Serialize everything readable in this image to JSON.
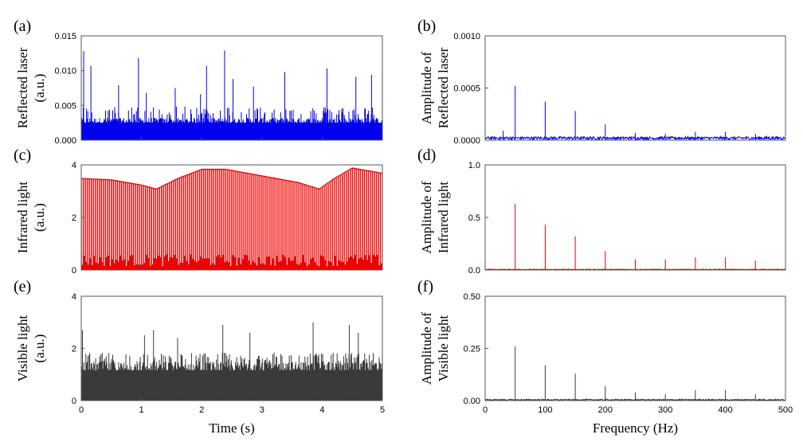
{
  "chart_data": [
    {
      "panel": "(a)",
      "type": "line",
      "ylabel": [
        "Reflected laser",
        "(a.u.)"
      ],
      "xlabel": "",
      "color": "#0000ee",
      "xlim": [
        0,
        5
      ],
      "ylim": [
        0,
        0.015
      ],
      "xticks": [
        0,
        1,
        2,
        3,
        4,
        5
      ],
      "xtick_labels": [],
      "yticks": [
        0,
        0.005,
        0.01,
        0.015
      ],
      "ytick_labels": [
        "0.000",
        "0.005",
        "0.010",
        "0.015"
      ],
      "signal": {
        "kind": "time",
        "base": 0.0028,
        "peaks_avg": 0.0042,
        "peak_prob": 0.22,
        "spikes": [
          [
            0.04,
            0.0128
          ],
          [
            0.16,
            0.0107
          ],
          [
            0.62,
            0.0079
          ],
          [
            0.95,
            0.0118
          ],
          [
            1.08,
            0.0068
          ],
          [
            1.56,
            0.0075
          ],
          [
            1.98,
            0.0066
          ],
          [
            2.08,
            0.0107
          ],
          [
            2.38,
            0.0129
          ],
          [
            2.52,
            0.0088
          ],
          [
            2.86,
            0.0077
          ],
          [
            3.38,
            0.0098
          ],
          [
            4.08,
            0.0103
          ],
          [
            4.56,
            0.0091
          ],
          [
            4.82,
            0.0094
          ]
        ]
      }
    },
    {
      "panel": "(b)",
      "type": "line",
      "ylabel": [
        "Amplitude of",
        "Reflected laser"
      ],
      "xlabel": "",
      "color": "#0000ee",
      "xlim": [
        0,
        500
      ],
      "ylim": [
        0,
        0.001
      ],
      "xticks": [
        0,
        100,
        200,
        300,
        400,
        500
      ],
      "xtick_labels": [],
      "yticks": [
        0,
        0.0005,
        0.001
      ],
      "ytick_labels": [
        "0.0000",
        "0.0005",
        "0.0010"
      ],
      "signal": {
        "kind": "spectrum",
        "noise": 2e-05,
        "peaks": [
          [
            0,
            0.00075
          ],
          [
            30,
            9e-05
          ],
          [
            50,
            0.00052
          ],
          [
            100,
            0.00037
          ],
          [
            150,
            0.00028
          ],
          [
            200,
            0.00015
          ],
          [
            250,
            7e-05
          ],
          [
            300,
            6e-05
          ],
          [
            350,
            8e-05
          ],
          [
            400,
            8e-05
          ],
          [
            450,
            6e-05
          ]
        ]
      }
    },
    {
      "panel": "(c)",
      "type": "line",
      "ylabel": [
        "Infrared light",
        "(a.u.)"
      ],
      "xlabel": "",
      "color": "#ee0000",
      "xlim": [
        0,
        5
      ],
      "ylim": [
        0,
        4
      ],
      "xticks": [
        0,
        1,
        2,
        3,
        4,
        5
      ],
      "xtick_labels": [],
      "yticks": [
        0,
        2,
        4
      ],
      "ytick_labels": [
        "0",
        "2",
        "4"
      ],
      "signal": {
        "kind": "envelope",
        "base": 0.35,
        "envelope": [
          [
            0,
            3.5
          ],
          [
            0.5,
            3.45
          ],
          [
            1.0,
            3.25
          ],
          [
            1.25,
            3.1
          ],
          [
            1.6,
            3.5
          ],
          [
            2.0,
            3.85
          ],
          [
            2.4,
            3.85
          ],
          [
            3.0,
            3.6
          ],
          [
            3.6,
            3.35
          ],
          [
            3.95,
            3.1
          ],
          [
            4.2,
            3.5
          ],
          [
            4.5,
            3.9
          ],
          [
            5.0,
            3.7
          ]
        ]
      }
    },
    {
      "panel": "(d)",
      "type": "line",
      "ylabel": [
        "Amplitude of",
        "Infrared light"
      ],
      "xlabel": "",
      "color": "#ee0000",
      "xlim": [
        0,
        500
      ],
      "ylim": [
        0,
        1.0
      ],
      "xticks": [
        0,
        100,
        200,
        300,
        400,
        500
      ],
      "xtick_labels": [],
      "yticks": [
        0,
        0.5,
        1.0
      ],
      "ytick_labels": [
        "0.0",
        "0.5",
        "1.0"
      ],
      "signal": {
        "kind": "spectrum",
        "noise": 0.005,
        "peaks": [
          [
            0,
            0.75
          ],
          [
            50,
            0.63
          ],
          [
            100,
            0.43
          ],
          [
            150,
            0.32
          ],
          [
            200,
            0.18
          ],
          [
            250,
            0.1
          ],
          [
            300,
            0.1
          ],
          [
            350,
            0.12
          ],
          [
            400,
            0.12
          ],
          [
            450,
            0.09
          ]
        ]
      }
    },
    {
      "panel": "(e)",
      "type": "line",
      "ylabel": [
        "Visible light",
        "(a.u.)"
      ],
      "xlabel": "Time (s)",
      "color": "#3a3a3a",
      "xlim": [
        0,
        5
      ],
      "ylim": [
        0,
        4
      ],
      "xticks": [
        0,
        1,
        2,
        3,
        4,
        5
      ],
      "xtick_labels": [
        "0",
        "1",
        "2",
        "3",
        "4",
        "5"
      ],
      "yticks": [
        0,
        2,
        4
      ],
      "ytick_labels": [
        "0",
        "2",
        "4"
      ],
      "signal": {
        "kind": "time",
        "base": 1.3,
        "peaks_avg": 1.6,
        "peak_prob": 0.35,
        "spikes": [
          [
            0.02,
            2.7
          ],
          [
            1.05,
            2.5
          ],
          [
            1.2,
            2.7
          ],
          [
            1.6,
            2.4
          ],
          [
            2.35,
            2.9
          ],
          [
            2.8,
            2.6
          ],
          [
            3.85,
            3.0
          ],
          [
            4.45,
            2.9
          ],
          [
            4.6,
            2.6
          ]
        ]
      }
    },
    {
      "panel": "(f)",
      "type": "line",
      "ylabel": [
        "Amplitude of",
        "Visible light"
      ],
      "xlabel": "Frequency (Hz)",
      "color": "#3a3a3a",
      "xlim": [
        0,
        500
      ],
      "ylim": [
        0,
        0.5
      ],
      "xticks": [
        0,
        100,
        200,
        300,
        400,
        500
      ],
      "xtick_labels": [
        "0",
        "100",
        "200",
        "300",
        "400",
        "500"
      ],
      "yticks": [
        0,
        0.25,
        0.5
      ],
      "ytick_labels": [
        "0.00",
        "0.25",
        "0.50"
      ],
      "signal": {
        "kind": "spectrum",
        "noise": 0.004,
        "peaks": [
          [
            50,
            0.26
          ],
          [
            100,
            0.17
          ],
          [
            150,
            0.13
          ],
          [
            200,
            0.07
          ],
          [
            250,
            0.04
          ],
          [
            300,
            0.03
          ],
          [
            350,
            0.05
          ],
          [
            400,
            0.05
          ],
          [
            450,
            0.03
          ]
        ]
      }
    }
  ]
}
